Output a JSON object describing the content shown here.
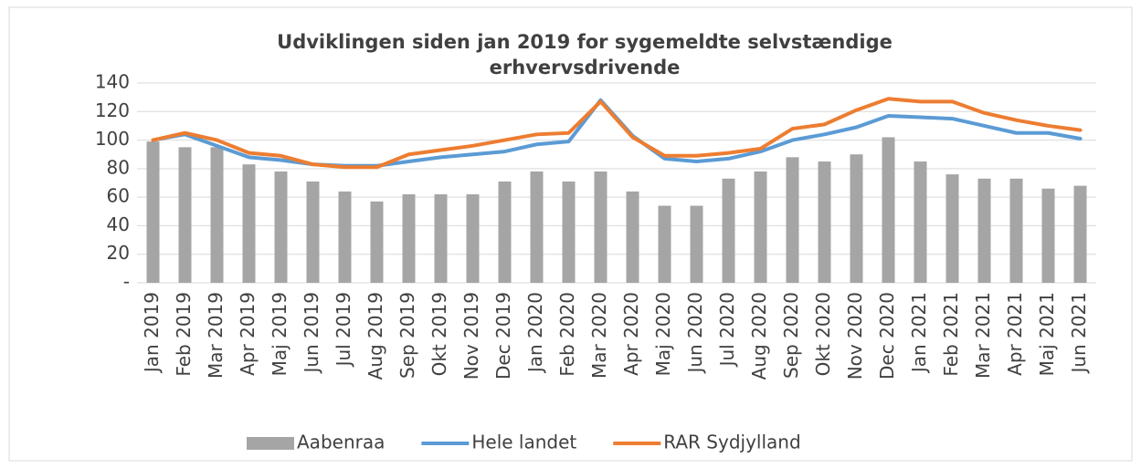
{
  "chart_data": {
    "type": "bar-line",
    "title": "Udviklingen siden jan 2019 for sygemeldte selvstændige erhvervsdrivende",
    "categories": [
      "Jan 2019",
      "Feb 2019",
      "Mar 2019",
      "Apr 2019",
      "Maj 2019",
      "Jun 2019",
      "Jul 2019",
      "Aug 2019",
      "Sep 2019",
      "Okt 2019",
      "Nov 2019",
      "Dec 2019",
      "Jan 2020",
      "Feb 2020",
      "Mar 2020",
      "Apr 2020",
      "Maj 2020",
      "Jun 2020",
      "Jul 2020",
      "Aug 2020",
      "Sep 2020",
      "Okt 2020",
      "Nov 2020",
      "Dec 2020",
      "Jan 2021",
      "Feb 2021",
      "Mar 2021",
      "Apr 2021",
      "Maj 2021",
      "Jun 2021"
    ],
    "series": [
      {
        "name": "Aabenraa",
        "type": "bar",
        "color": "#a5a5a5",
        "values": [
          99,
          95,
          95,
          83,
          78,
          71,
          64,
          57,
          62,
          62,
          62,
          71,
          78,
          71,
          78,
          64,
          54,
          54,
          73,
          78,
          88,
          85,
          90,
          102,
          85,
          76,
          73,
          73,
          66,
          68
        ]
      },
      {
        "name": "Hele landet",
        "type": "line",
        "color": "#5b9bd5",
        "values": [
          100,
          104,
          96,
          88,
          86,
          83,
          82,
          82,
          85,
          88,
          90,
          92,
          97,
          99,
          128,
          103,
          87,
          85,
          87,
          92,
          100,
          104,
          109,
          117,
          116,
          115,
          110,
          105,
          105,
          101
        ]
      },
      {
        "name": "RAR Sydjylland",
        "type": "line",
        "color": "#ed7d31",
        "values": [
          100,
          105,
          100,
          91,
          89,
          83,
          81,
          81,
          90,
          93,
          96,
          100,
          104,
          105,
          127,
          102,
          89,
          89,
          91,
          94,
          108,
          111,
          121,
          129,
          127,
          127,
          119,
          114,
          110,
          107
        ]
      }
    ],
    "ylim": [
      0,
      140
    ],
    "yticks": [
      {
        "value": 0,
        "label": "-"
      },
      20,
      40,
      60,
      80,
      100,
      120,
      140
    ],
    "grid": true,
    "legend": "bottom"
  }
}
